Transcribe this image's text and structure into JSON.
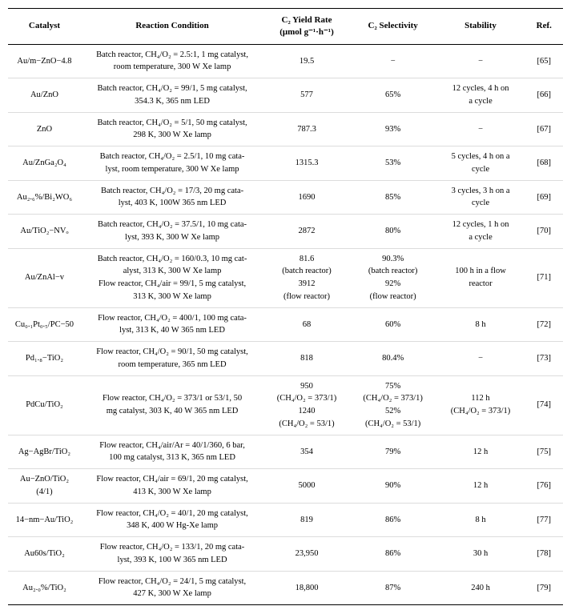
{
  "page": {
    "background_color": "#ffffff",
    "text_color": "#000000"
  },
  "table": {
    "columns": [
      "catalyst",
      "condition",
      "yield",
      "selectivity",
      "stability",
      "ref"
    ],
    "headers": [
      "Catalyst",
      "Reaction Condition",
      "C₂ Yield Rate\n(μmol g⁻¹·h⁻¹)",
      "C₂ Selectivity",
      "Stability",
      "Ref."
    ],
    "rows": [
      {
        "catalyst": "Au/m−ZnO−4.8",
        "condition": "Batch reactor, CH₄/O₂ = 2.5:1, 1 mg catalyst,\nroom temperature, 300 W Xe lamp",
        "yield": "19.5",
        "selectivity": "−",
        "stability": "−",
        "ref": "[65]"
      },
      {
        "catalyst": "Au/ZnO",
        "condition": "Batch reactor, CH₄/O₂ = 99/1, 5 mg catalyst,\n354.3 K, 365 nm LED",
        "yield": "577",
        "selectivity": "65%",
        "stability": "12 cycles, 4 h on\na cycle",
        "ref": "[66]"
      },
      {
        "catalyst": "ZnO",
        "condition": "Batch reactor, CH₄/O₂ = 5/1, 50 mg catalyst,\n298 K, 300 W Xe lamp",
        "yield": "787.3",
        "selectivity": "93%",
        "stability": "−",
        "ref": "[67]"
      },
      {
        "catalyst": "Au/ZnGa₂O₄",
        "condition": "Batch reactor, CH₄/O₂ = 2.5/1, 10 mg cata-\nlyst, room temperature, 300 W Xe lamp",
        "yield": "1315.3",
        "selectivity": "53%",
        "stability": "5 cycles, 4 h on a\ncycle",
        "ref": "[68]"
      },
      {
        "catalyst": "Au₂.₆%/Bi₂WO₆",
        "condition": "Batch reactor, CH₄/O₂ = 17/3, 20 mg cata-\nlyst, 403 K, 100W 365 nm LED",
        "yield": "1690",
        "selectivity": "85%",
        "stability": "3 cycles, 3 h on a\ncycle",
        "ref": "[69]"
      },
      {
        "catalyst": "Au/TiO₂−NVₒ",
        "condition": "Batch reactor, CH₄/O₂ = 37.5/1, 10 mg cata-\nlyst, 393 K, 300 W Xe lamp",
        "yield": "2872",
        "selectivity": "80%",
        "stability": "12 cycles, 1 h on\na cycle",
        "ref": "[70]"
      },
      {
        "catalyst": "Au/ZnAl−v",
        "condition": "Batch reactor, CH₄/O₂ = 160/0.3, 10 mg cat-\nalyst, 313 K, 300 W Xe lamp\nFlow reactor, CH₄/air = 99/1, 5 mg catalyst,\n313 K, 300 W Xe lamp",
        "yield": "81.6\n(batch reactor)\n3912\n(flow reactor)",
        "selectivity": "90.3%\n(batch reactor)\n92%\n(flow reactor)",
        "stability": "100 h in a flow\nreactor",
        "ref": "[71]"
      },
      {
        "catalyst": "Cu₀.₁Pt₀.₅/PC−50",
        "condition": "Flow reactor, CH₄/O₂ = 400/1, 100 mg cata-\nlyst, 313 K, 40 W 365 nm LED",
        "yield": "68",
        "selectivity": "60%",
        "stability": "8 h",
        "ref": "[72]"
      },
      {
        "catalyst": "Pd₁.₈−TiO₂",
        "condition": "Flow reactor, CH₄/O₂ = 90/1, 50 mg catalyst,\nroom temperature, 365 nm LED",
        "yield": "818",
        "selectivity": "80.4%",
        "stability": "−",
        "ref": "[73]"
      },
      {
        "catalyst": "PdCu/TiO₂",
        "condition": "Flow reactor, CH₄/O₂ = 373/1 or 53/1, 50\nmg catalyst, 303 K, 40 W 365 nm LED",
        "yield": "950\n(CH₄/O₂ = 373/1)\n1240\n(CH₄/O₂ = 53/1)",
        "selectivity": "75%\n(CH₄/O₂ = 373/1)\n52%\n(CH₄/O₂ = 53/1)",
        "stability": "112 h\n(CH₄/O₂ = 373/1)",
        "ref": "[74]"
      },
      {
        "catalyst": "Ag−AgBr/TiO₂",
        "condition": "Flow reactor, CH₄/air/Ar = 40/1/360, 6 bar,\n100 mg catalyst, 313 K, 365 nm LED",
        "yield": "354",
        "selectivity": "79%",
        "stability": "12 h",
        "ref": "[75]"
      },
      {
        "catalyst": "Au−ZnO/TiO₂\n(4/1)",
        "condition": "Flow reactor, CH₄/air = 69/1, 20 mg catalyst,\n413 K, 300 W Xe lamp",
        "yield": "5000",
        "selectivity": "90%",
        "stability": "12 h",
        "ref": "[76]"
      },
      {
        "catalyst": "14−nm−Au/TiO₂",
        "condition": "Flow reactor, CH₄/O₂ = 40/1, 20 mg catalyst,\n348 K, 400 W Hg-Xe lamp",
        "yield": "819",
        "selectivity": "86%",
        "stability": "8 h",
        "ref": "[77]"
      },
      {
        "catalyst": "Au60s/TiO₂",
        "condition": "Flow reactor, CH₄/O₂ = 133/1, 20 mg cata-\nlyst, 393 K, 100 W 365 nm LED",
        "yield": "23,950",
        "selectivity": "86%",
        "stability": "30 h",
        "ref": "[78]"
      },
      {
        "catalyst": "Au₂.₀%/TiO₂",
        "condition": "Flow reactor, CH₄/O₂ = 24/1, 5 mg catalyst,\n427 K, 300 W Xe lamp",
        "yield": "18,800",
        "selectivity": "87%",
        "stability": "240 h",
        "ref": "[79]"
      }
    ]
  }
}
